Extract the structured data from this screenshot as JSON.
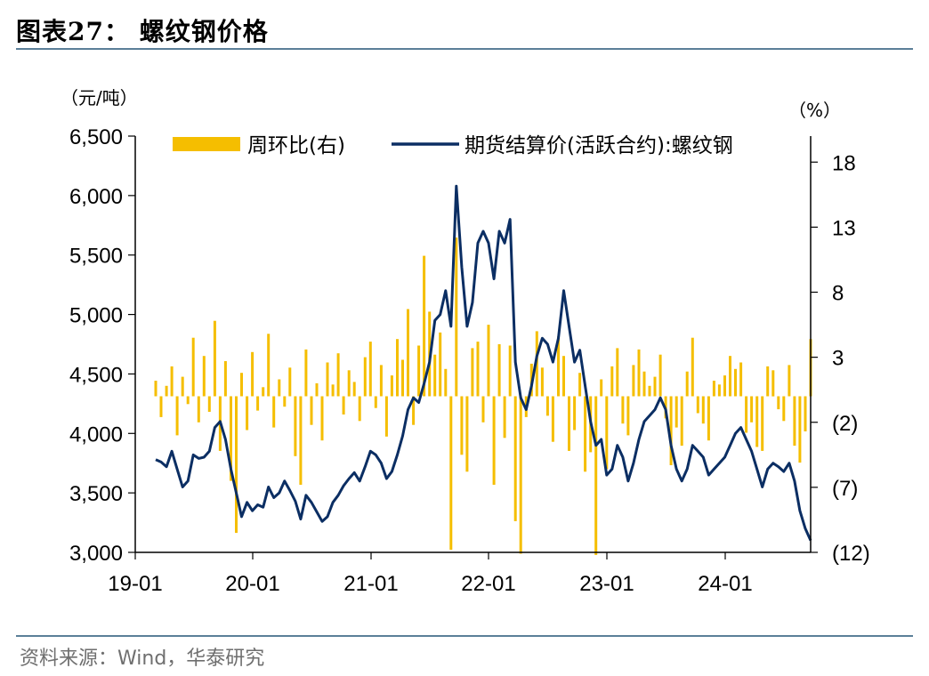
{
  "header": {
    "title": "图表27：  螺纹钢价格"
  },
  "footer": {
    "source": "资料来源：Wind，华泰研究"
  },
  "chart_data": {
    "type": "line",
    "title": "",
    "left_unit": "（元/吨）",
    "right_unit": "（%）",
    "x_ticks": [
      "19-01",
      "20-01",
      "21-01",
      "22-01",
      "23-01",
      "24-01"
    ],
    "left_axis": {
      "ylim": [
        3000,
        6500
      ],
      "ticks": [
        "3,000",
        "3,500",
        "4,000",
        "4,500",
        "5,000",
        "5,500",
        "6,000",
        "6,500"
      ]
    },
    "right_axis": {
      "ylim": [
        -12,
        20
      ],
      "ticks": [
        "(12)",
        "(7)",
        "(2)",
        "3",
        "8",
        "13",
        "18"
      ]
    },
    "legend": {
      "placement": "top",
      "entries": [
        "周环比(右)",
        "期货结算价(活跃合约):螺纹钢"
      ]
    },
    "colors": {
      "bar": "#F5BE00",
      "line": "#0B2E63",
      "axis": "#000000",
      "rule": "#5b7f98"
    },
    "series": [
      {
        "name": "期货结算价(活跃合约):螺纹钢",
        "type": "line",
        "axis": "left",
        "date_range": [
          "2019-03",
          "2024-09"
        ],
        "values": [
          3780,
          3760,
          3720,
          3850,
          3700,
          3550,
          3600,
          3820,
          3790,
          3800,
          3850,
          4050,
          4100,
          3950,
          3700,
          3500,
          3300,
          3420,
          3350,
          3400,
          3380,
          3550,
          3460,
          3500,
          3600,
          3520,
          3430,
          3280,
          3480,
          3420,
          3340,
          3260,
          3300,
          3420,
          3480,
          3560,
          3620,
          3670,
          3600,
          3720,
          3850,
          3820,
          3750,
          3620,
          3680,
          3820,
          3980,
          4200,
          4300,
          4260,
          4420,
          4600,
          4950,
          5000,
          5200,
          4900,
          6080,
          5400,
          4900,
          5100,
          5600,
          5700,
          5600,
          5300,
          5700,
          5600,
          5800,
          4600,
          4300,
          4200,
          4400,
          4650,
          4800,
          4750,
          4600,
          4800,
          5200,
          4900,
          4600,
          4700,
          4400,
          4100,
          3900,
          3950,
          3650,
          3700,
          3900,
          3800,
          3600,
          3750,
          3950,
          4100,
          4150,
          4200,
          4300,
          4200,
          3900,
          3700,
          3600,
          3700,
          3900,
          3850,
          3800,
          3650,
          3700,
          3750,
          3800,
          3900,
          4000,
          4050,
          3950,
          3850,
          3700,
          3550,
          3700,
          3750,
          3720,
          3680,
          3750,
          3600,
          3350,
          3200,
          3100
        ]
      },
      {
        "name": "周环比(右)",
        "type": "bar",
        "axis": "right",
        "values": [
          1.2,
          -1.6,
          0.8,
          2.3,
          -3.0,
          1.5,
          -0.6,
          4.5,
          -2.0,
          3.1,
          -1.2,
          5.8,
          -4.2,
          2.7,
          -6.5,
          -10.5,
          1.8,
          -2.6,
          3.4,
          -1.1,
          0.7,
          4.8,
          -2.4,
          1.3,
          -0.8,
          2.2,
          -4.6,
          -6.8,
          3.6,
          -2.2,
          1.0,
          -3.4,
          2.6,
          0.9,
          3.3,
          -1.4,
          2.0,
          1.1,
          -1.9,
          3.0,
          4.2,
          -0.9,
          2.4,
          -3.1,
          1.6,
          4.4,
          2.8,
          6.7,
          -2.2,
          3.9,
          10.8,
          6.5,
          3.2,
          4.9,
          2.1,
          -11.8,
          12.2,
          -4.5,
          -5.8,
          3.7,
          4.2,
          -2.0,
          5.5,
          -6.8,
          4.0,
          -3.2,
          3.9,
          -9.6,
          -12.1,
          -1.6,
          2.5,
          5.0,
          2.2,
          -1.5,
          -3.5,
          4.6,
          3.1,
          -4.2,
          -2.6,
          1.8,
          -5.8,
          -4.3,
          -12.2,
          1.3,
          -5.6,
          2.3,
          3.7,
          -2.1,
          -3.0,
          2.4,
          3.6,
          1.9,
          0.8,
          1.5,
          3.2,
          -1.7,
          -5.3,
          -2.4,
          -3.8,
          1.9,
          4.5,
          -1.3,
          -2.1,
          -3.4,
          1.2,
          0.9,
          1.6,
          3.1,
          2.1,
          2.6,
          -2.8,
          -2.0,
          -3.9,
          -4.2,
          2.3,
          2.0,
          -1.0,
          -1.9,
          2.4,
          -3.8,
          -5.1,
          -2.7,
          4.4
        ]
      }
    ]
  }
}
